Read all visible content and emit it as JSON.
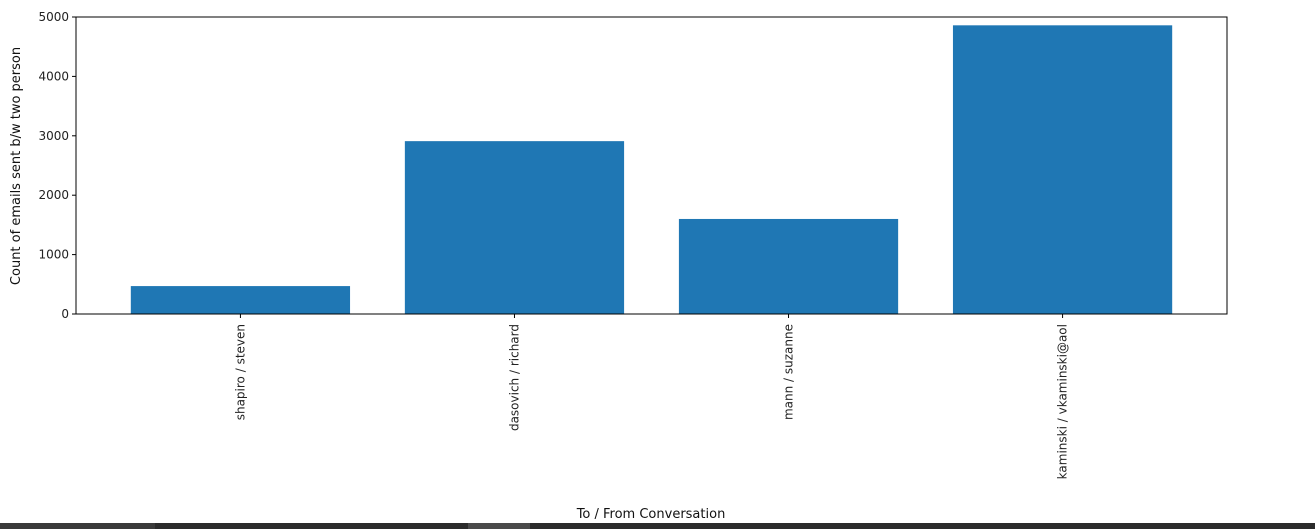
{
  "chart_data": {
    "type": "bar",
    "categories": [
      "shapiro / steven",
      "dasovich / richard",
      "mann / suzanne",
      "kaminski / vkaminski@aol"
    ],
    "values": [
      470,
      2910,
      1600,
      4860
    ],
    "xlabel": "To / From Conversation",
    "ylabel": "Count of emails sent b/w two person",
    "ylim": [
      0,
      5000
    ],
    "yticks": [
      0,
      1000,
      2000,
      3000,
      4000,
      5000
    ],
    "bar_color": "#1f77b4",
    "grid": false
  }
}
